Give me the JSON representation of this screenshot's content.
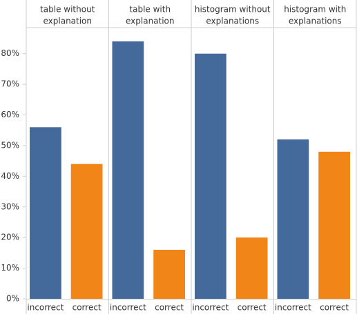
{
  "chart_data": {
    "type": "bar",
    "panels": [
      {
        "title": [
          "table without",
          "explanation"
        ],
        "categories": [
          "incorrect",
          "correct"
        ],
        "values": [
          56,
          44
        ]
      },
      {
        "title": [
          "table with",
          "explanation"
        ],
        "categories": [
          "incorrect",
          "correct"
        ],
        "values": [
          84,
          16
        ]
      },
      {
        "title": [
          "histogram without",
          "explanations"
        ],
        "categories": [
          "incorrect",
          "correct"
        ],
        "values": [
          80,
          20
        ]
      },
      {
        "title": [
          "histogram with",
          "explanations"
        ],
        "categories": [
          "incorrect",
          "correct"
        ],
        "values": [
          52,
          48
        ]
      }
    ],
    "colors": [
      "#44699b",
      "#f28518"
    ],
    "ylim": [
      0,
      88.5
    ],
    "yticks": [
      {
        "value": 0,
        "label": "0%"
      },
      {
        "value": 10,
        "label": "10%"
      },
      {
        "value": 20,
        "label": "20%"
      },
      {
        "value": 30,
        "label": "30%"
      },
      {
        "value": 40,
        "label": "40%"
      },
      {
        "value": 50,
        "label": "50%"
      },
      {
        "value": 60,
        "label": "60%"
      },
      {
        "value": 70,
        "label": "70%"
      },
      {
        "value": 80,
        "label": "80%"
      }
    ]
  }
}
